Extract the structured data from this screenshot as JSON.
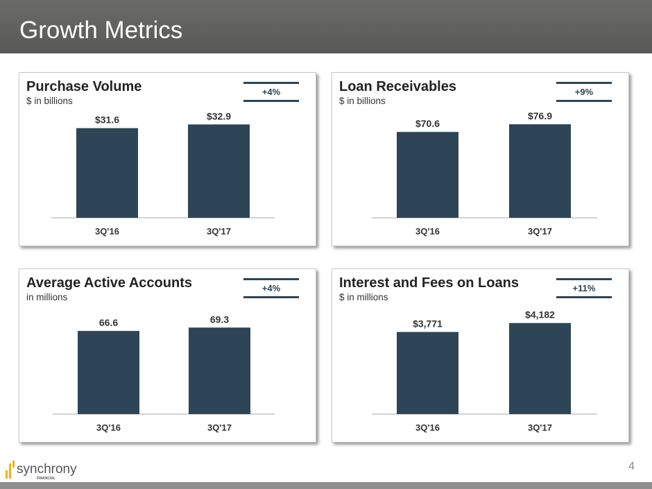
{
  "header": {
    "title": "Growth Metrics"
  },
  "footer": {
    "page": "4",
    "logo_text": "synchrony",
    "logo_sub": "FINANCIAL"
  },
  "colors": {
    "bar": "#2d4556",
    "accent": "#f2b21c"
  },
  "panels": [
    {
      "title": "Purchase Volume",
      "subtitle": "$ in billions",
      "growth": "+4%"
    },
    {
      "title": "Loan Receivables",
      "subtitle": "$ in billions",
      "growth": "+9%"
    },
    {
      "title": "Average Active Accounts",
      "subtitle": "in millions",
      "growth": "+4%"
    },
    {
      "title": "Interest and Fees on Loans",
      "subtitle": "$ in millions",
      "growth": "+11%"
    }
  ],
  "chart_data": [
    {
      "type": "bar",
      "title": "Purchase Volume",
      "ylabel": "$ in billions",
      "categories": [
        "3Q'16",
        "3Q'17"
      ],
      "values": [
        31.6,
        32.9
      ],
      "labels": [
        "$31.6",
        "$32.9"
      ],
      "ylim": [
        0,
        33
      ]
    },
    {
      "type": "bar",
      "title": "Loan Receivables",
      "ylabel": "$ in billions",
      "categories": [
        "3Q'16",
        "3Q'17"
      ],
      "values": [
        70.6,
        76.9
      ],
      "labels": [
        "$70.6",
        "$76.9"
      ],
      "ylim": [
        0,
        77
      ]
    },
    {
      "type": "bar",
      "title": "Average Active Accounts",
      "ylabel": "in millions",
      "categories": [
        "3Q'16",
        "3Q'17"
      ],
      "values": [
        66.6,
        69.3
      ],
      "labels": [
        "66.6",
        "69.3"
      ],
      "ylim": [
        0,
        75
      ]
    },
    {
      "type": "bar",
      "title": "Interest and Fees on Loans",
      "ylabel": "$ in millions",
      "categories": [
        "3Q'16",
        "3Q'17"
      ],
      "values": [
        3771,
        4182
      ],
      "labels": [
        "$3,771",
        "$4,182"
      ],
      "ylim": [
        0,
        4300
      ]
    }
  ]
}
